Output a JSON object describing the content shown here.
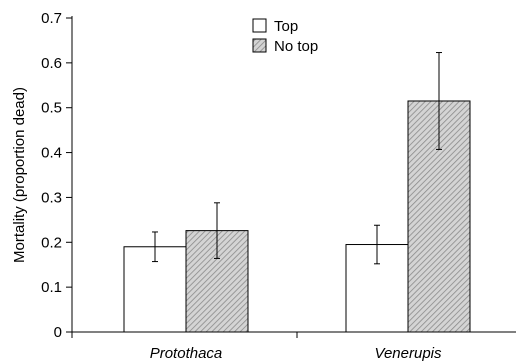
{
  "chart_data": {
    "type": "bar",
    "categories": [
      "Protothaca",
      "Venerupis"
    ],
    "series": [
      {
        "name": "Top",
        "values": [
          0.19,
          0.195
        ],
        "error": [
          0.033,
          0.043
        ],
        "fill": "#ffffff",
        "pattern": "none"
      },
      {
        "name": "No top",
        "values": [
          0.226,
          0.515
        ],
        "error": [
          0.062,
          0.108
        ],
        "fill": "#c8c8c8",
        "pattern": "diagonal-hatch"
      }
    ],
    "title": "",
    "xlabel": "",
    "ylabel": "Mortality (proportion dead)",
    "ylim": [
      0,
      0.7
    ],
    "yticks": [
      "0",
      "0.1",
      "0.2",
      "0.3",
      "0.4",
      "0.5",
      "0.6",
      "0.7"
    ],
    "grid": false,
    "legend_position": "top-center",
    "error_bars": true
  }
}
